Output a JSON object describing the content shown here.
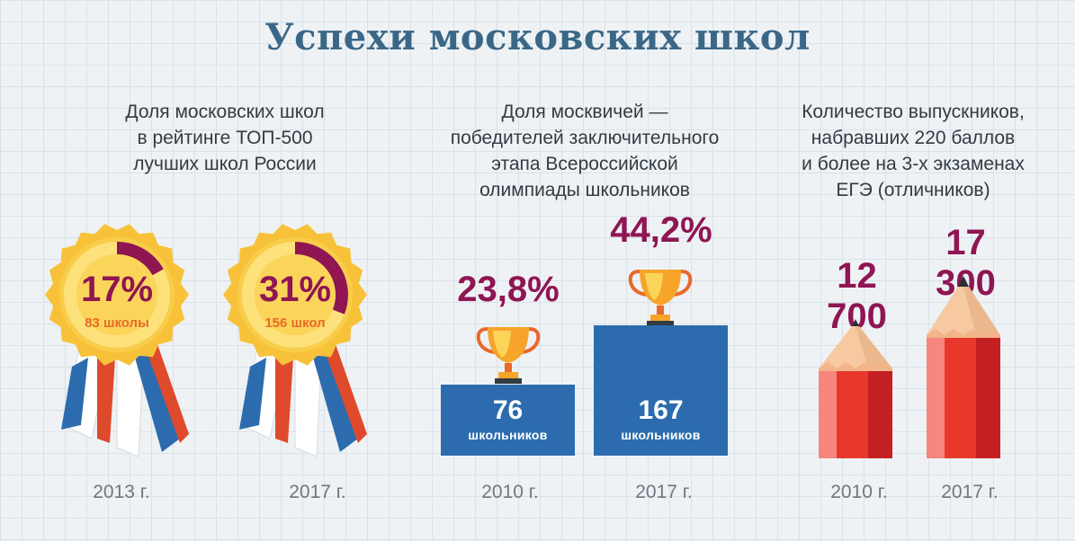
{
  "title": "Успехи московских школ",
  "chart_data": [
    {
      "type": "pie",
      "title": "Доля московских школ в рейтинге ТОП-500 лучших школ России",
      "title_lines": [
        "Доля московских школ",
        "в рейтинге ТОП-500",
        "лучших школ России"
      ],
      "items": [
        {
          "year": "2013 г.",
          "value": 17,
          "value_label": "17%",
          "sub_label": "83 школы"
        },
        {
          "year": "2017 г.",
          "value": 31,
          "value_label": "31%",
          "sub_label": "156 школ"
        }
      ]
    },
    {
      "type": "bar",
      "title": "Доля москвичей — победителей заключительного этапа Всероссийской олимпиады школьников",
      "title_lines": [
        "Доля москвичей —",
        "победителей заключительного",
        "этапа Всероссийской",
        "олимпиады школьников"
      ],
      "items": [
        {
          "year": "2010 г.",
          "value": 23.8,
          "value_label": "23,8%",
          "count": "76",
          "count_label": "школьников"
        },
        {
          "year": "2017 г.",
          "value": 44.2,
          "value_label": "44,2%",
          "count": "167",
          "count_label": "школьников"
        }
      ]
    },
    {
      "type": "bar",
      "title": "Количество выпускников, набравших 220 баллов и более на 3-х экзаменах ЕГЭ (отличников)",
      "title_lines": [
        "Количество выпускников,",
        "набравших 220 баллов",
        "и более на 3-х экзаменах",
        "ЕГЭ (отличников)"
      ],
      "items": [
        {
          "year": "2010 г.",
          "value": 12700,
          "value_label": "12 700"
        },
        {
          "year": "2017 г.",
          "value": 17300,
          "value_label": "17 300"
        }
      ]
    }
  ],
  "colors": {
    "accent": "#8f1553",
    "title": "#3b6787",
    "podium": "#2c6cae",
    "medal_gold": "#f7c23a",
    "medal_inner": "#fbd55a",
    "pencil_red": "#e8382c",
    "orange_text": "#e8692a"
  }
}
